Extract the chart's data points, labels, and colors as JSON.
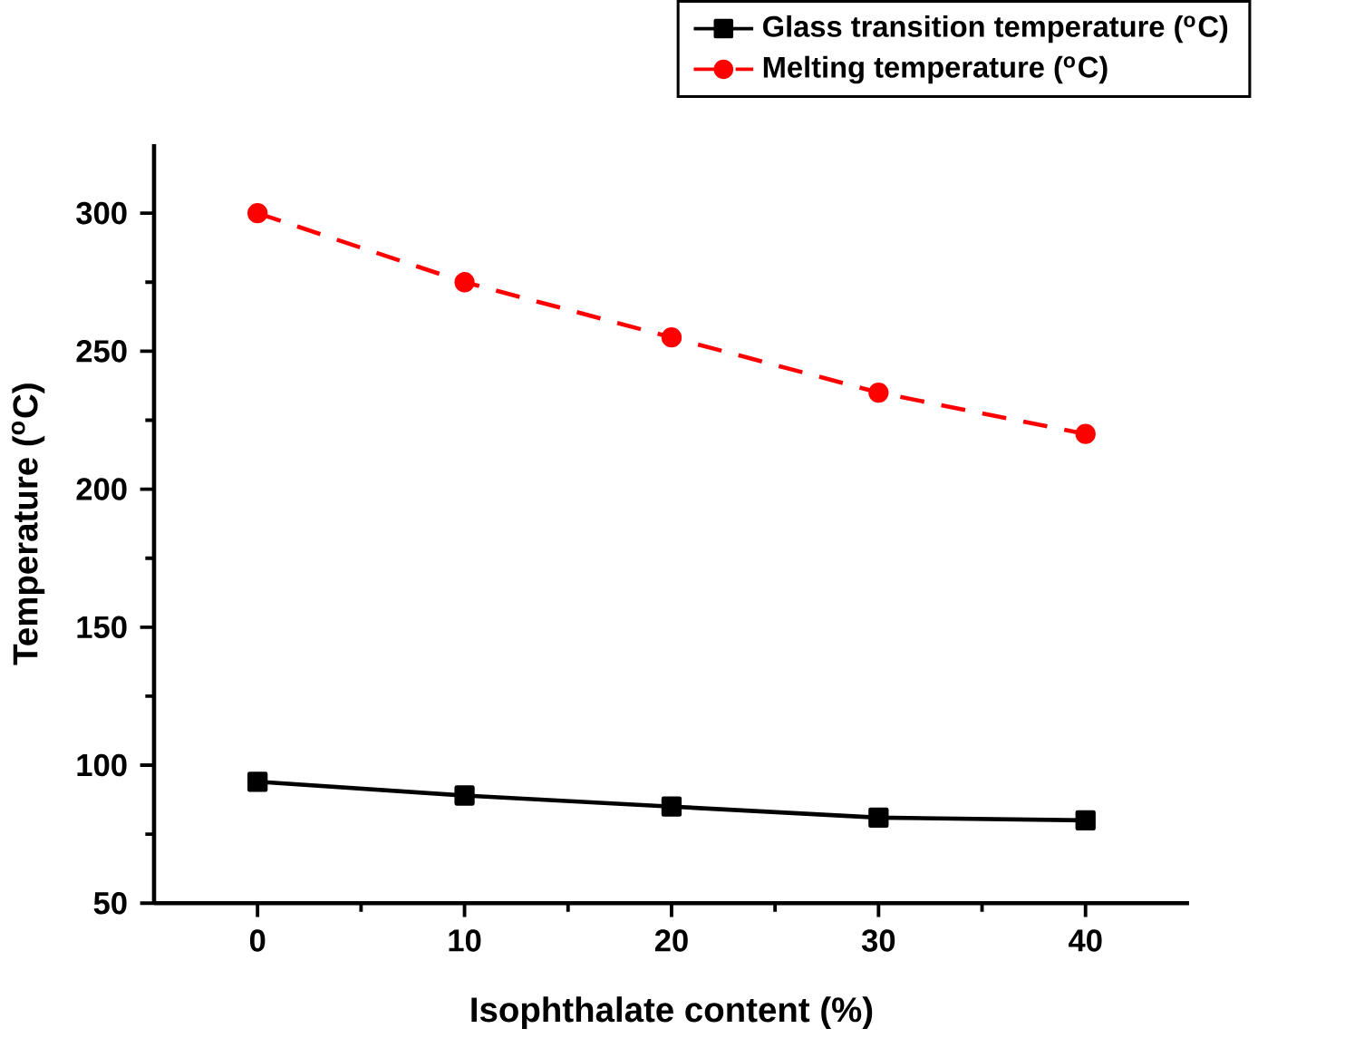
{
  "chart_data": {
    "type": "line",
    "xlabel": "Isophthalate content (%)",
    "ylabel": "Temperature ($^{o}$C)",
    "x": [
      0,
      10,
      20,
      30,
      40
    ],
    "series": [
      {
        "name": "Glass transition temperature ($^{o}$C)",
        "color": "#000000",
        "values": [
          94,
          89,
          85,
          81,
          80
        ],
        "marker": "square",
        "line_style": "solid"
      },
      {
        "name": "Melting temperature ($^{o}$C)",
        "color": "#ff0000",
        "values": [
          300,
          275,
          255,
          235,
          220
        ],
        "marker": "circle",
        "line_style": "dashed"
      }
    ],
    "xlim": [
      -5,
      45
    ],
    "ylim": [
      50,
      325
    ],
    "xticks": [
      0,
      10,
      20,
      30,
      40
    ],
    "yticks": [
      50,
      100,
      150,
      200,
      250,
      300
    ],
    "grid": false,
    "legend": "top right"
  }
}
